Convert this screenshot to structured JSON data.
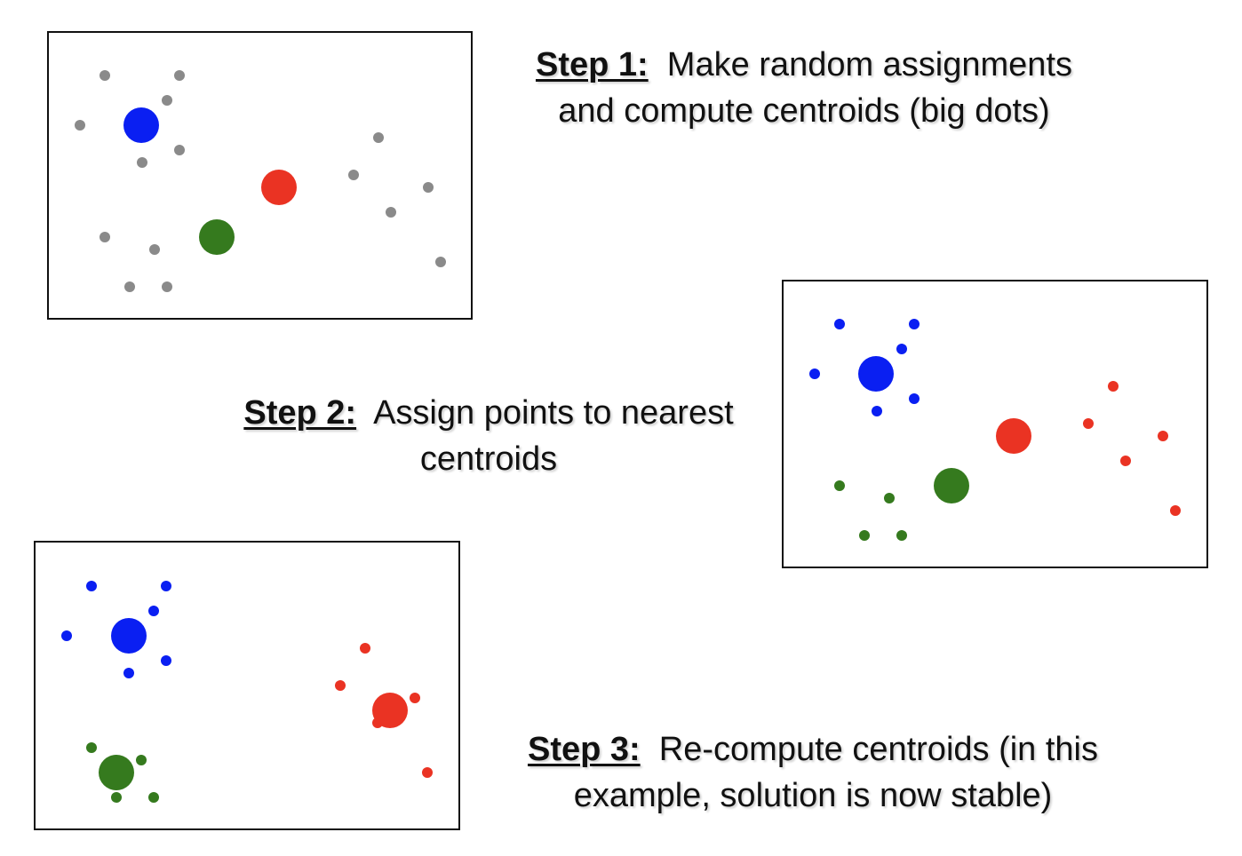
{
  "colors": {
    "unassigned": "#8a8a8a",
    "blue": "#0a1ff2",
    "red": "#ea3323",
    "green": "#357a1e"
  },
  "steps": [
    {
      "label": "Step 1:",
      "text_line1": "Make random assignments",
      "text_line2": "and compute centroids (big dots)"
    },
    {
      "label": "Step 2:",
      "text_line1": "Assign points to nearest",
      "text_line2": "centroids"
    },
    {
      "label": "Step 3:",
      "text_line1": "Re-compute centroids (in this",
      "text_line2": "example, solution is now stable)"
    }
  ]
}
